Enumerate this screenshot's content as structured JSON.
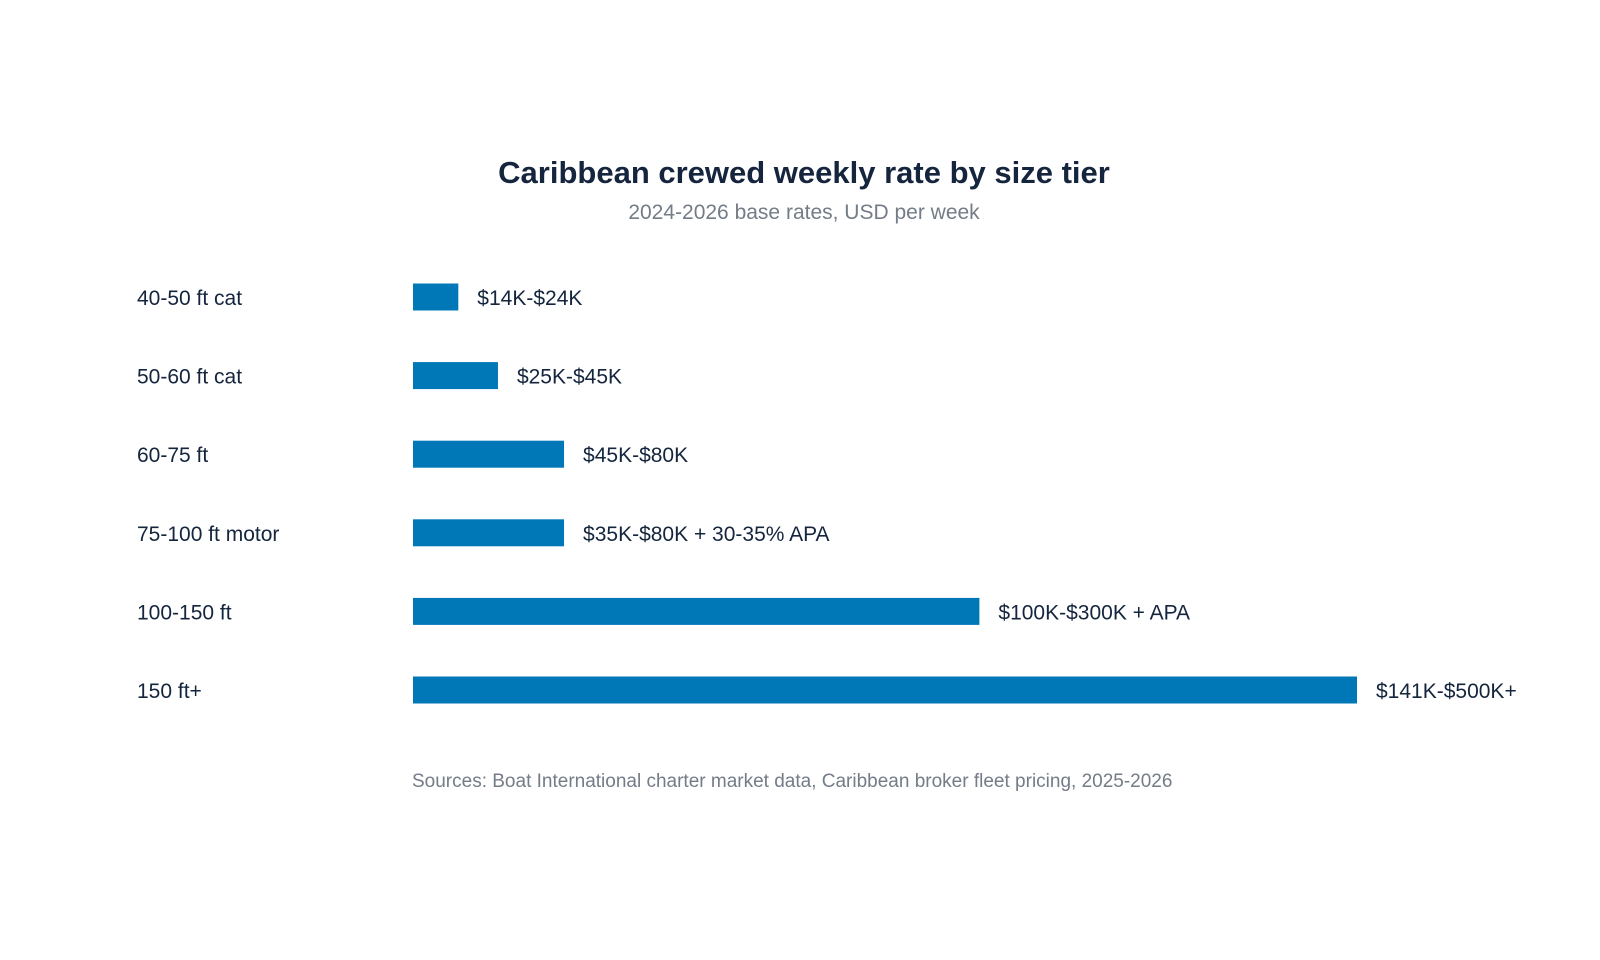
{
  "chart_data": {
    "type": "bar",
    "orientation": "horizontal",
    "title": "Caribbean crewed weekly rate by size tier",
    "subtitle": "2024-2026 base rates, USD per week",
    "categories": [
      "40-50 ft cat",
      "50-60 ft cat",
      "60-75 ft",
      "75-100 ft motor",
      "100-150 ft",
      "150 ft+"
    ],
    "values": [
      24000,
      45000,
      80000,
      80000,
      300000,
      500000
    ],
    "data_labels": [
      "$14K-$24K",
      "$25K-$45K",
      "$45K-$80K",
      "$35K-$80K + 30-35% APA",
      "$100K-$300K + APA",
      "$141K-$500K+"
    ],
    "xlabel": "",
    "ylabel": "",
    "xlim": [
      0,
      500000
    ],
    "grid": false,
    "legend": "none",
    "bar_color": "#0077b6",
    "source": "Sources: Boat International charter market data, Caribbean broker fleet pricing, 2025-2026"
  }
}
